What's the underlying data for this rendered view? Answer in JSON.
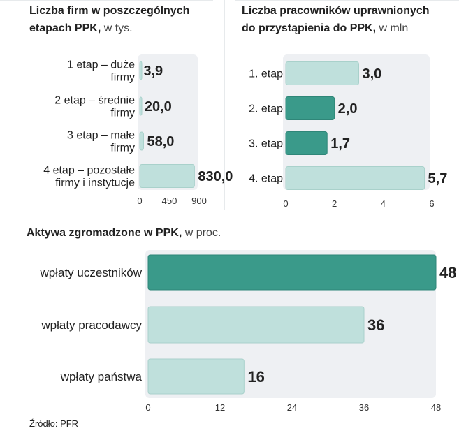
{
  "colors": {
    "dark_bar": "#3a9a8a",
    "light_bar": "#bfe0dc",
    "panel_bg": "#eef0f3",
    "text": "#222222",
    "divider": "#cfd4d8"
  },
  "chart_data": [
    {
      "type": "bar",
      "orientation": "horizontal",
      "title_bold_lines": [
        "Liczba firm w poszczególnych",
        "etapach PPK,"
      ],
      "title_unit": "w tys.",
      "categories": [
        [
          "1 etap – duże",
          "firmy"
        ],
        [
          "2 etap – średnie",
          "firmy"
        ],
        [
          "3 etap – małe",
          "firmy"
        ],
        [
          "4 etap – pozostałe",
          "firmy i instytucje"
        ]
      ],
      "values": [
        3.9,
        20.0,
        58.0,
        830.0
      ],
      "value_labels": [
        "3,9",
        "20,0",
        "58,0",
        "830,0"
      ],
      "bar_colors": [
        "light",
        "light",
        "light",
        "light"
      ],
      "xlim": [
        0,
        900
      ],
      "ticks": [
        0,
        450,
        900
      ],
      "tick_labels": [
        "0",
        "450",
        "900"
      ]
    },
    {
      "type": "bar",
      "orientation": "horizontal",
      "title_bold_lines": [
        "Liczba pracowników uprawnionych",
        "do przystąpienia do PPK,"
      ],
      "title_unit": "w mln",
      "categories": [
        [
          "1. etap"
        ],
        [
          "2. etap"
        ],
        [
          "3. etap"
        ],
        [
          "4. etap"
        ]
      ],
      "values": [
        3.0,
        2.0,
        1.7,
        5.7
      ],
      "value_labels": [
        "3,0",
        "2,0",
        "1,7",
        "5,7"
      ],
      "bar_colors": [
        "light",
        "dark",
        "dark",
        "light"
      ],
      "xlim": [
        0,
        6
      ],
      "ticks": [
        0,
        2,
        4,
        6
      ],
      "tick_labels": [
        "0",
        "2",
        "4",
        "6"
      ]
    },
    {
      "type": "bar",
      "orientation": "horizontal",
      "title_bold_lines": [
        "Aktywa zgromadzone w PPK,"
      ],
      "title_unit": "w proc.",
      "categories": [
        [
          "wpłaty uczestników"
        ],
        [
          "wpłaty pracodawcy"
        ],
        [
          "wpłaty państwa"
        ]
      ],
      "values": [
        48,
        36,
        16
      ],
      "value_labels": [
        "48",
        "36",
        "16"
      ],
      "bar_colors": [
        "dark",
        "light",
        "light"
      ],
      "xlim": [
        0,
        48
      ],
      "ticks": [
        0,
        12,
        24,
        36,
        48
      ],
      "tick_labels": [
        "0",
        "12",
        "24",
        "36",
        "48"
      ]
    }
  ],
  "source": "Źródło: PFR"
}
